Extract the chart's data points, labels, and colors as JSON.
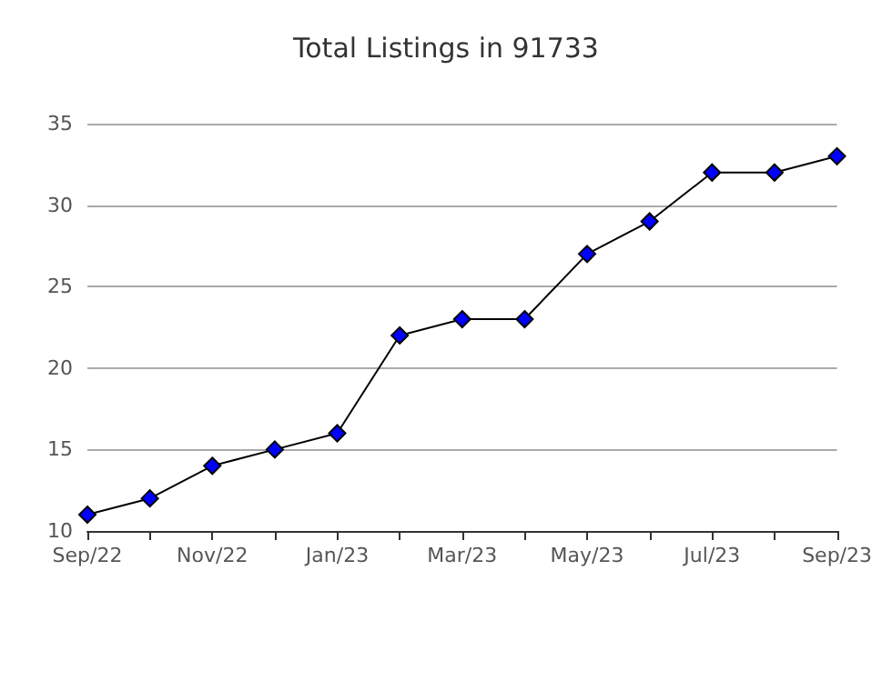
{
  "chart_data": {
    "type": "line",
    "title": "Total Listings in 91733",
    "categories": [
      "Sep/22",
      null,
      "Nov/22",
      null,
      "Jan/23",
      null,
      "Mar/23",
      null,
      "May/23",
      null,
      "Jul/23",
      null,
      "Sep/23"
    ],
    "series": [
      {
        "color": "#0000ff",
        "values": [
          11,
          12,
          14,
          15,
          16,
          22,
          23,
          23,
          27,
          29,
          32,
          32,
          33
        ]
      }
    ],
    "ylim": [
      10,
      35
    ],
    "yticks": [
      10,
      15,
      20,
      25,
      30,
      35
    ],
    "grid": "y",
    "marker": "diamond",
    "line_style": "solid"
  }
}
